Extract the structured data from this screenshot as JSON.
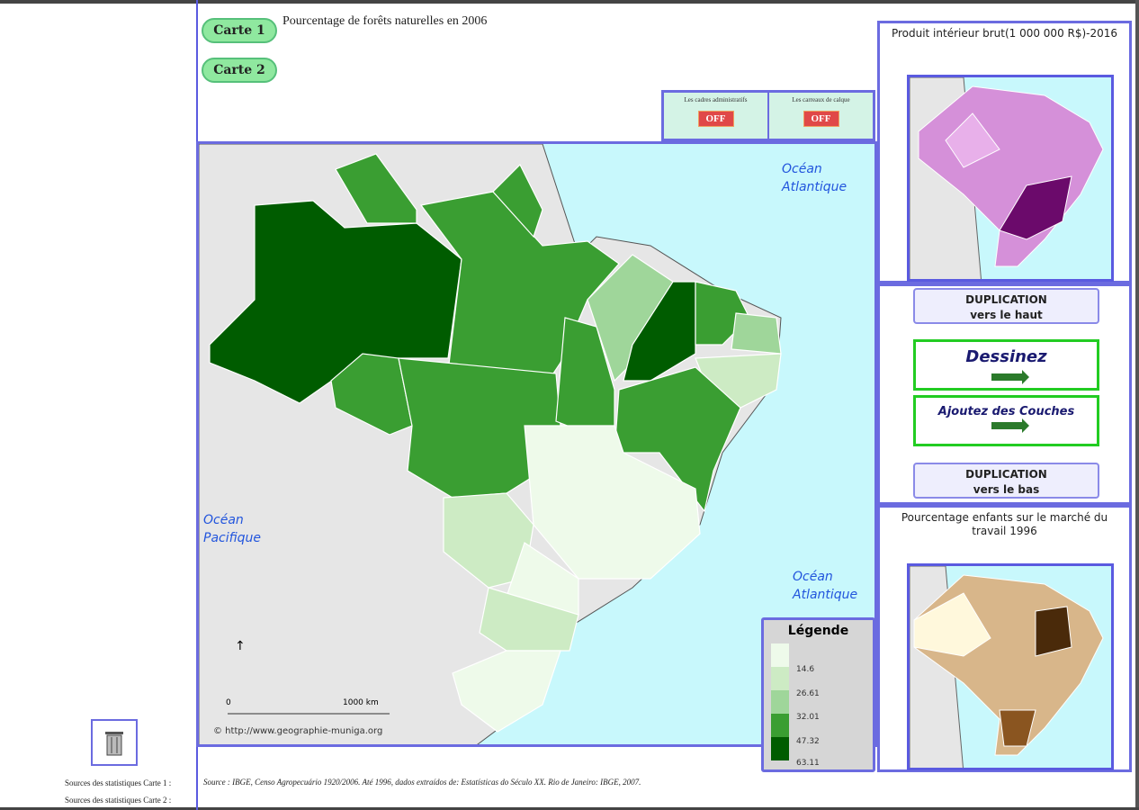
{
  "header": {
    "carte1": "Carte 1",
    "carte2": "Carte 2",
    "title": "Pourcentage de forêts naturelles en 2006"
  },
  "toggles": [
    {
      "label": "Les cadres administratifs",
      "state": "OFF"
    },
    {
      "label": "Les carreaux de calque",
      "state": "OFF"
    }
  ],
  "map": {
    "oceans": {
      "atl1": [
        "Océan",
        "Atlantique"
      ],
      "pac": [
        "Océan",
        "Pacifique"
      ],
      "atl2": [
        "Océan",
        "Atlantique"
      ]
    },
    "scale_zero": "0",
    "scale_km": "1000 km",
    "credit": "© http://www.geographie-muniga.org"
  },
  "legend": {
    "title": "Légende",
    "values": [
      "14.6",
      "26.61",
      "32.01",
      "47.32",
      "63.11"
    ],
    "colors": [
      "#eefaea",
      "#cdebc4",
      "#9fd69a",
      "#3a9e32",
      "#005c00"
    ]
  },
  "side": {
    "top_caption": "Produit intérieur brut(1 000 000 R$)-2016",
    "dup_up": [
      "DUPLICATION",
      "vers le haut"
    ],
    "draw": "Dessinez",
    "layers": "Ajoutez des Couches",
    "dup_down": [
      "DUPLICATION",
      "vers le bas"
    ],
    "bottom_caption": "Pourcentage enfants sur le marché du travail 1996"
  },
  "sources": {
    "carte1_label": "Sources des statistiques Carte 1 :",
    "carte1_text": "Source : IBGE, Censo Agropecuário 1920/2006. Até 1996, dados extraídos de: Estatísticas do Século XX. Rio de Janeiro: IBGE, 2007.",
    "carte2_label": "Sources des statistiques Carte 2 :"
  }
}
